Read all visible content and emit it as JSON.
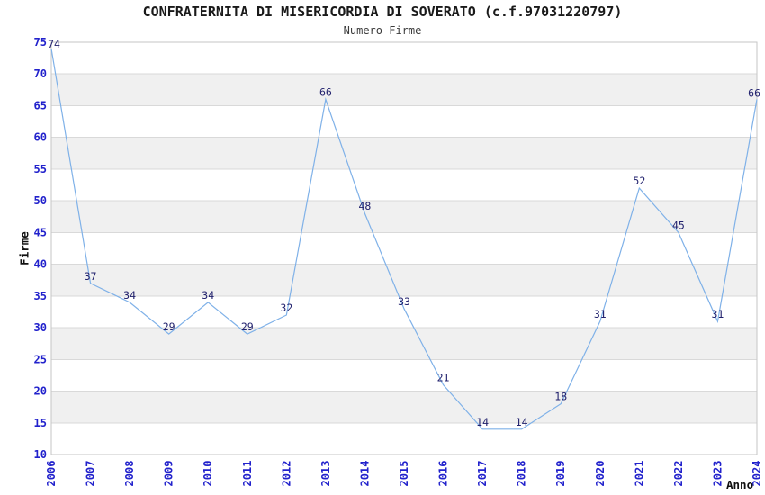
{
  "title": "CONFRATERNITA DI MISERICORDIA DI SOVERATO (c.f.97031220797)",
  "subtitle": "Numero Firme",
  "chart_data": {
    "type": "line",
    "x": [
      "2006",
      "2007",
      "2008",
      "2009",
      "2010",
      "2011",
      "2012",
      "2013",
      "2014",
      "2015",
      "2016",
      "2017",
      "2018",
      "2019",
      "2020",
      "2021",
      "2022",
      "2023",
      "2024"
    ],
    "series": [
      {
        "name": "Numero Firme",
        "values": [
          74,
          37,
          34,
          29,
          34,
          29,
          32,
          66,
          48,
          33,
          21,
          14,
          14,
          18,
          31,
          52,
          45,
          31,
          66
        ]
      }
    ],
    "title": "CONFRATERNITA DI MISERICORDIA DI SOVERATO (c.f.97031220797)",
    "subtitle": "Numero Firme",
    "xlabel": "Anno",
    "ylabel": "Firme",
    "ylim": [
      10,
      75
    ],
    "ytick_step": 5,
    "grid": true,
    "legend": "none",
    "band_rows": [
      [
        15,
        20
      ],
      [
        25,
        30
      ],
      [
        35,
        40
      ],
      [
        45,
        50
      ],
      [
        55,
        60
      ],
      [
        65,
        70
      ]
    ],
    "point_labels": true
  },
  "colors": {
    "line": "#7fb1e8",
    "band": "#f0f0f0",
    "gridline": "#d9d9d9",
    "plot_border": "#c6c6c6",
    "tick_text": "#2222cc",
    "point_label_text": "#22226e",
    "axis_label_text": "#111111"
  }
}
